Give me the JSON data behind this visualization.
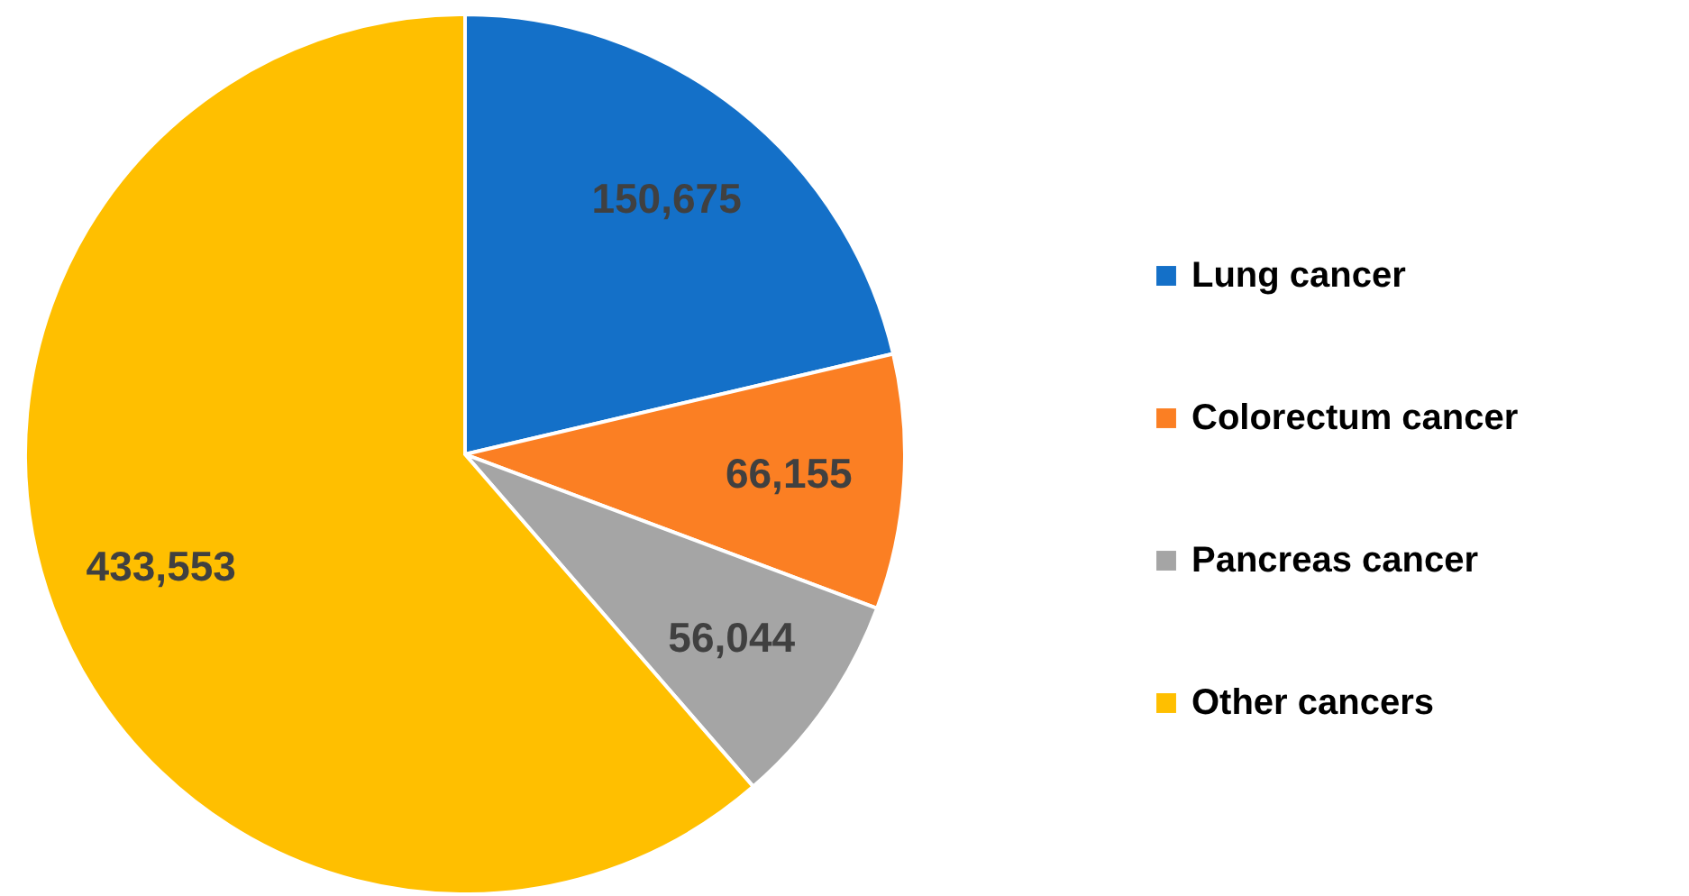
{
  "chart_data": {
    "type": "pie",
    "categories": [
      "Lung cancer",
      "Colorectum cancer",
      "Pancreas cancer",
      "Other cancers"
    ],
    "values": [
      150675,
      66155,
      56044,
      433553
    ],
    "value_labels": [
      "150,675",
      "66,155",
      "56,044",
      "433,553"
    ],
    "colors": [
      "#1470c8",
      "#fb7f23",
      "#a5a5a5",
      "#ffbf00"
    ],
    "legend": "right"
  }
}
